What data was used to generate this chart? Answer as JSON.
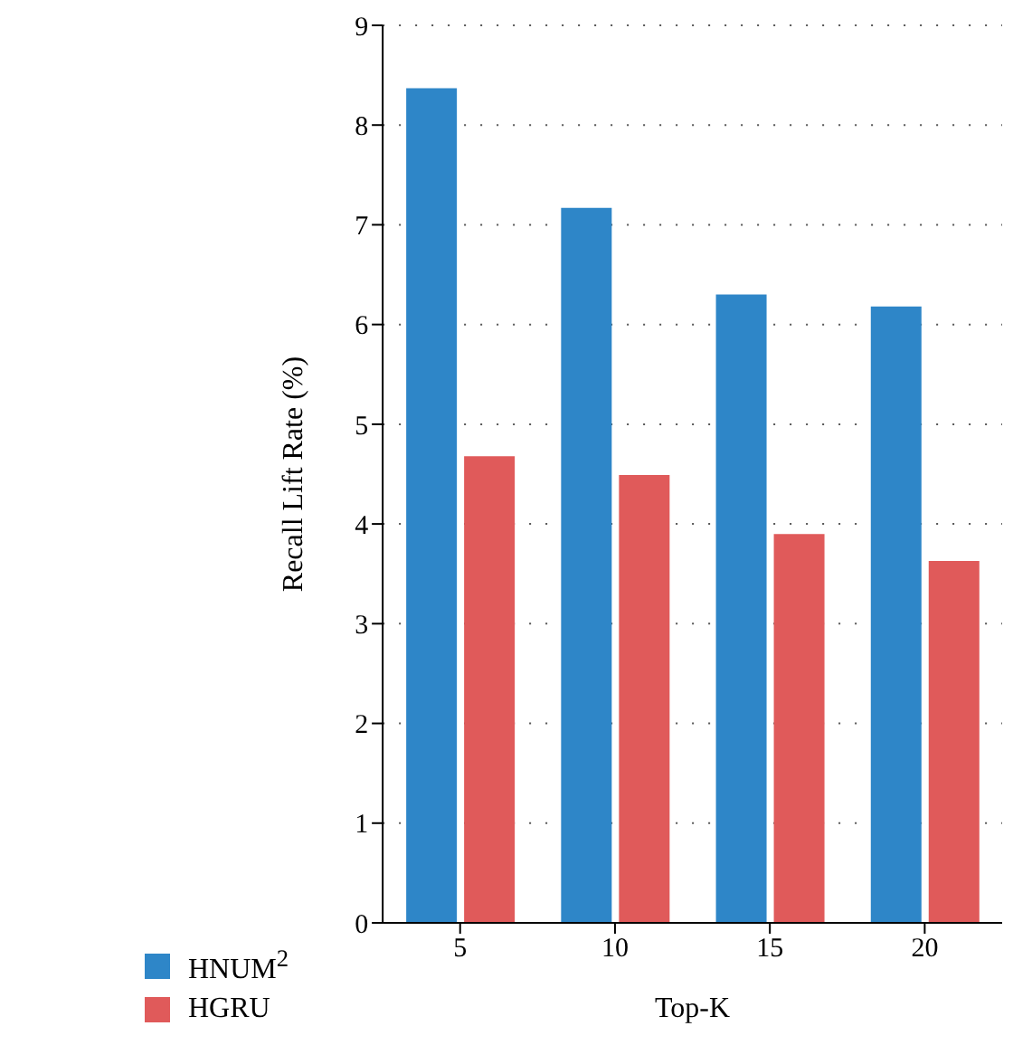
{
  "chart_data": {
    "type": "bar",
    "xlabel": "Top-K",
    "ylabel": "Recall Lift Rate (%)",
    "categories": [
      "5",
      "10",
      "15",
      "20"
    ],
    "series": [
      {
        "name": "HNUM$^{2}$",
        "color": "#2e86c8",
        "values": [
          8.37,
          7.17,
          6.3,
          6.18
        ]
      },
      {
        "name": "HGRU",
        "color": "#e05a5a",
        "values": [
          4.68,
          4.49,
          3.9,
          3.63
        ]
      }
    ],
    "ylim": [
      0,
      9
    ],
    "yticks": [
      0,
      1,
      2,
      3,
      4,
      5,
      6,
      7,
      8,
      9
    ],
    "grid": "y",
    "legend": "bottom left"
  }
}
